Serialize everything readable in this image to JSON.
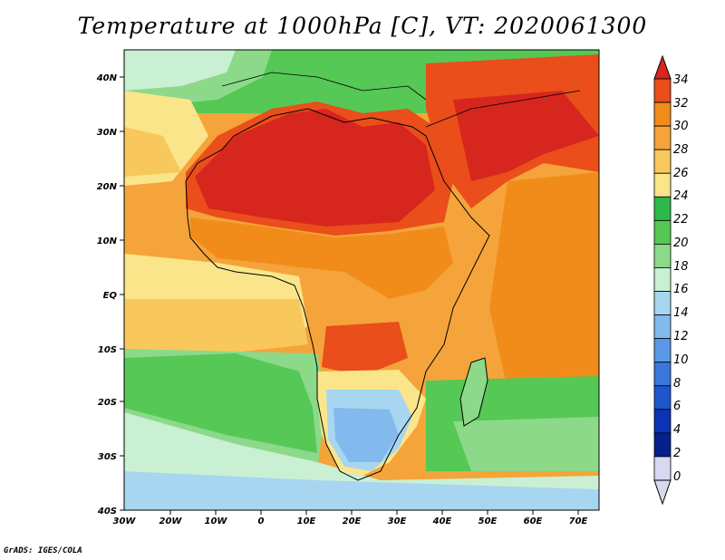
{
  "title": "Temperature at 1000hPa [C], VT: 2020061300",
  "credit": "GrADS: IGES/COLA",
  "map": {
    "lat_labels": [
      "40N",
      "30N",
      "20N",
      "10N",
      "EQ",
      "10S",
      "20S",
      "30S",
      "40S"
    ],
    "lon_labels": [
      "30W",
      "20W",
      "10W",
      "0",
      "10E",
      "20E",
      "30E",
      "40E",
      "50E",
      "60E",
      "70E"
    ]
  },
  "colorbar": {
    "labels": [
      "34",
      "32",
      "30",
      "28",
      "26",
      "24",
      "22",
      "20",
      "18",
      "16",
      "14",
      "12",
      "10",
      "8",
      "6",
      "4",
      "2",
      "0"
    ],
    "colors": [
      "#d7261e",
      "#e94e1b",
      "#f18c1a",
      "#f4a43a",
      "#f8c85c",
      "#fbe58a",
      "#2db84c",
      "#55c855",
      "#8cd98a",
      "#c9f0d2",
      "#a8d6f0",
      "#82baee",
      "#5a99e6",
      "#3b76dc",
      "#1d55cd",
      "#0b33b4",
      "#05208a",
      "#d8d8f0"
    ]
  }
}
